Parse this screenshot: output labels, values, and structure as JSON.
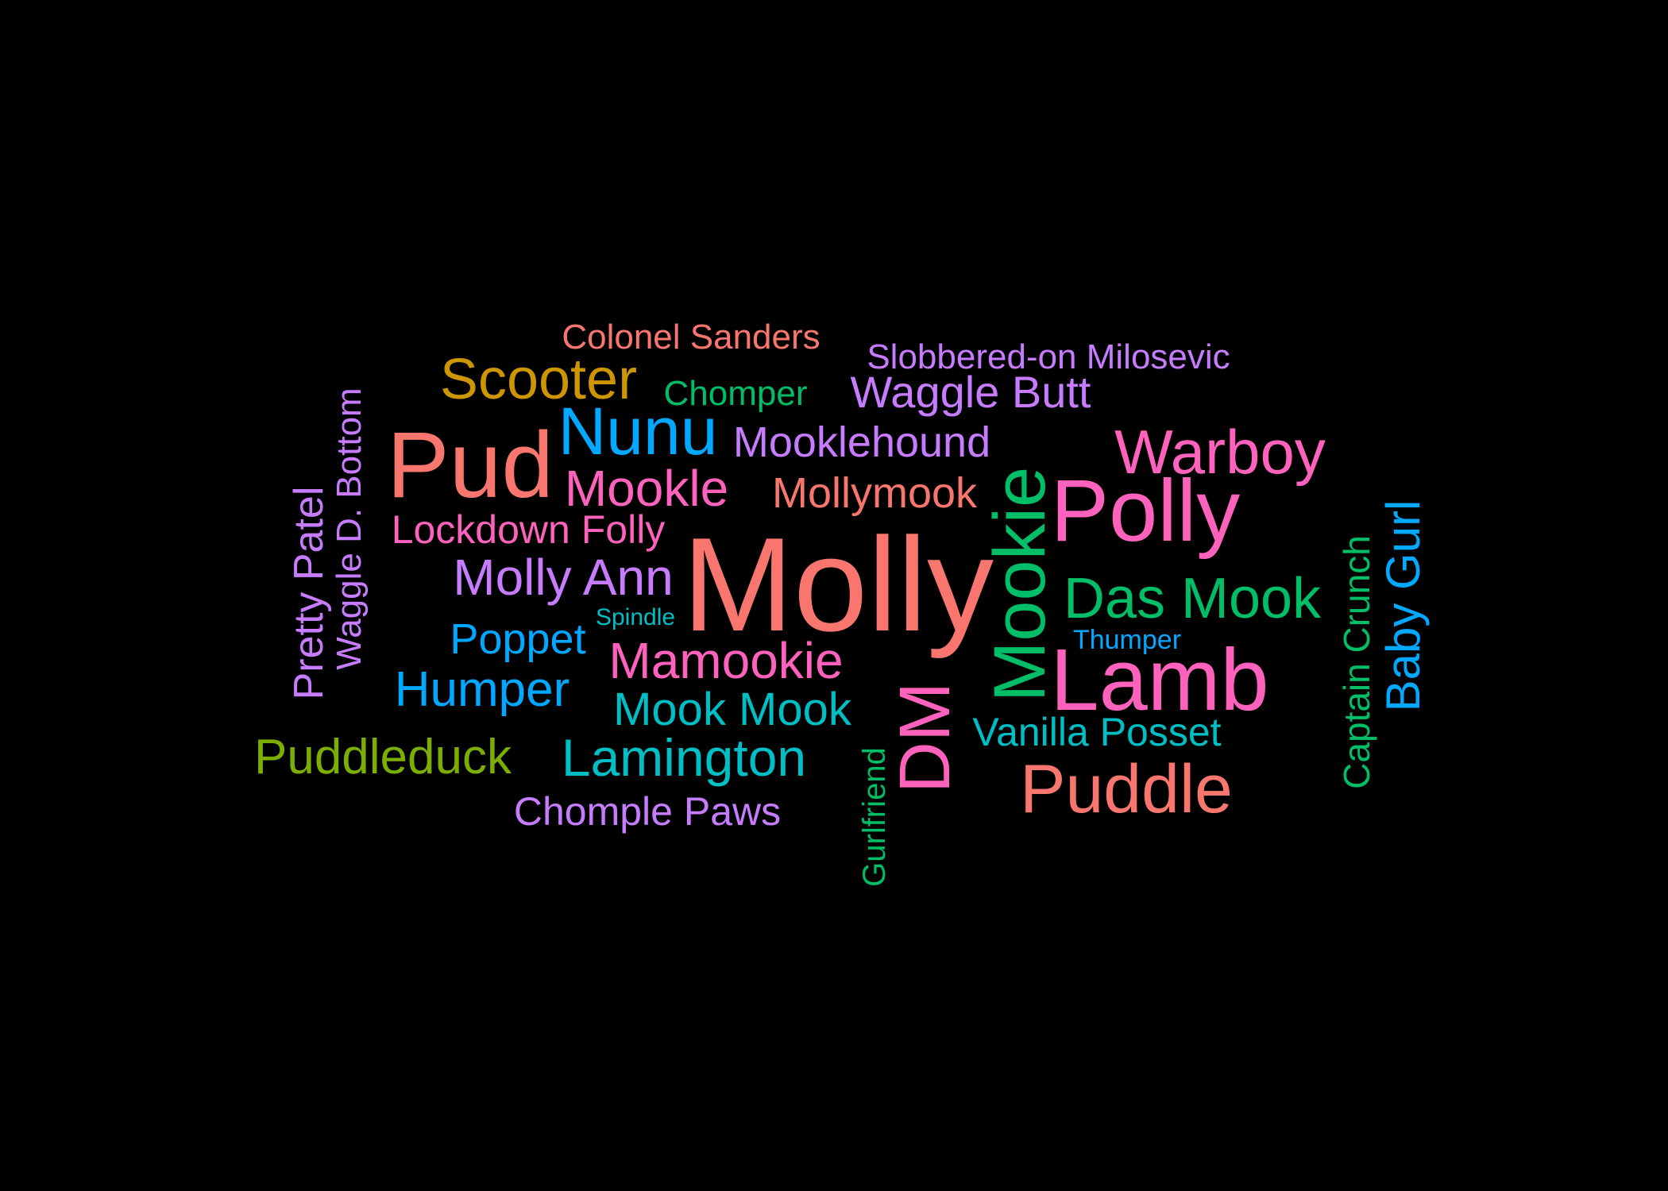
{
  "colors": {
    "background": "#000000",
    "salmon": "#F8766D",
    "pink": "#FF62BC",
    "purple": "#C77CFF",
    "blue": "#00A9FF",
    "cyan": "#00BFC4",
    "green": "#00BE67",
    "gold": "#CD9600",
    "olive": "#7CAE00"
  },
  "words": {
    "molly": "Molly",
    "polly": "Polly",
    "lamb": "Lamb",
    "pud": "Pud",
    "mookie": "Mookie",
    "puddle": "Puddle",
    "dm": "DM",
    "nunu": "Nunu",
    "warboy": "Warboy",
    "das_mook": "Das Mook",
    "scooter": "Scooter",
    "lamington": "Lamington",
    "mamookie": "Mamookie",
    "molly_ann": "Molly Ann",
    "mookle": "Mookle",
    "humper": "Humper",
    "puddleduck": "Puddleduck",
    "baby_gurl": "Baby Gurl",
    "mook_mook": "Mook Mook",
    "waggle_butt": "Waggle Butt",
    "mooklehound": "Mooklehound",
    "mollymook": "Mollymook",
    "poppet": "Poppet",
    "pretty_patel": "Pretty Patel",
    "lockdown_folly": "Lockdown Folly",
    "vanilla_posset": "Vanilla Posset",
    "chomple_paws": "Chomple Paws",
    "captain_crunch": "Captain Crunch",
    "colonel_sanders": "Colonel Sanders",
    "slobbered_on_milosevic": "Slobbered-on Milosevic",
    "chomper": "Chomper",
    "waggle_d_bottom": "Waggle D. Bottom",
    "gurlfriend": "Gurlfriend",
    "thumper": "Thumper",
    "spindle": "Spindle"
  }
}
